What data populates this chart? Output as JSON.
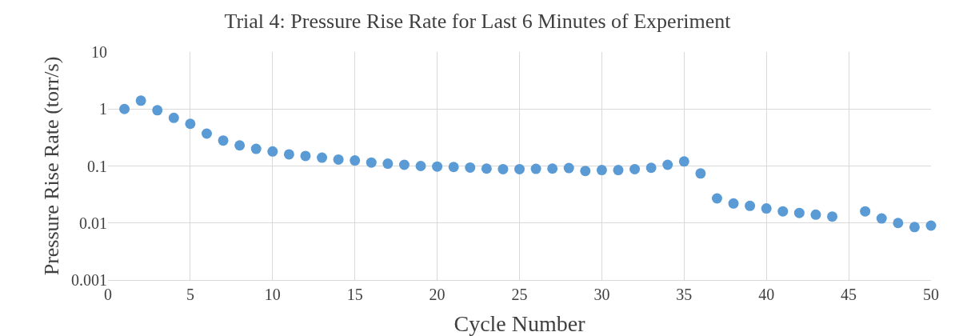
{
  "chart_data": {
    "type": "scatter",
    "title": "Trial 4: Pressure Rise Rate for Last 6 Minutes of Experiment",
    "xlabel": "Cycle Number",
    "ylabel": "Pressure Rise Rate (torr/s)",
    "x": [
      1,
      2,
      3,
      4,
      5,
      6,
      7,
      8,
      9,
      10,
      11,
      12,
      13,
      14,
      15,
      16,
      17,
      18,
      19,
      20,
      21,
      22,
      23,
      24,
      25,
      26,
      27,
      28,
      29,
      30,
      31,
      32,
      33,
      34,
      35,
      36,
      37,
      38,
      39,
      40,
      41,
      42,
      43,
      44,
      46,
      47,
      48,
      49,
      50
    ],
    "series": [
      {
        "color": "#5b9bd5",
        "values": [
          1.0,
          1.4,
          0.95,
          0.7,
          0.55,
          0.37,
          0.28,
          0.23,
          0.2,
          0.18,
          0.16,
          0.15,
          0.14,
          0.13,
          0.125,
          0.115,
          0.11,
          0.105,
          0.1,
          0.098,
          0.096,
          0.094,
          0.09,
          0.088,
          0.088,
          0.089,
          0.09,
          0.092,
          0.082,
          0.085,
          0.085,
          0.088,
          0.093,
          0.105,
          0.12,
          0.074,
          0.027,
          0.022,
          0.02,
          0.018,
          0.016,
          0.015,
          0.014,
          0.013,
          0.016,
          0.012,
          0.01,
          0.0085,
          0.009
        ]
      }
    ],
    "xlim": [
      0,
      50
    ],
    "xticks": [
      0,
      5,
      10,
      15,
      20,
      25,
      30,
      35,
      40,
      45,
      50
    ],
    "ylim": [
      0.001,
      10
    ],
    "yticks": [
      0.001,
      0.01,
      0.1,
      1,
      10
    ],
    "log": "y",
    "grid": true,
    "marker": "circle"
  }
}
